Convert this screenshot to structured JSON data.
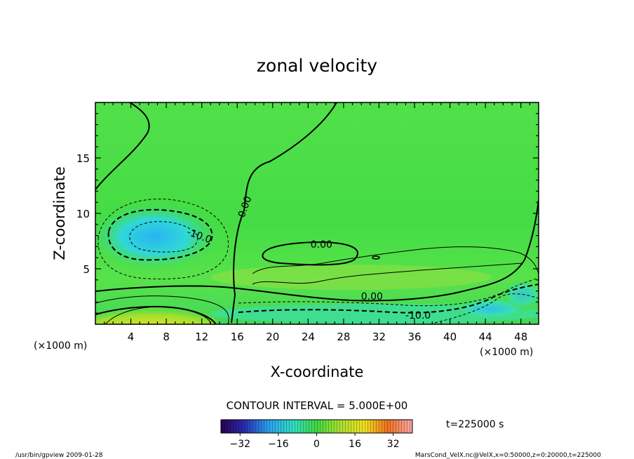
{
  "chart_data": {
    "type": "heatmap",
    "title": "zonal velocity",
    "xlabel": "X-coordinate",
    "ylabel": "Z-coordinate",
    "x_unit": "(×1000 m)",
    "y_unit": "(×1000 m)",
    "xlim": [
      0,
      50
    ],
    "ylim": [
      0,
      20
    ],
    "x_ticks": [
      4,
      8,
      12,
      16,
      20,
      24,
      28,
      32,
      36,
      40,
      44,
      48
    ],
    "y_ticks": [
      5,
      10,
      15
    ],
    "contour_labels": [
      {
        "text": "0.00",
        "x": 17.2,
        "z": 10.5
      },
      {
        "text": "-10.0",
        "x": 11.6,
        "z": 7.7
      },
      {
        "text": "0.00",
        "x": 25.5,
        "z": 6.9
      },
      {
        "text": "0.00",
        "x": 31.2,
        "z": 2.2
      },
      {
        "text": "-10.0",
        "x": 36.4,
        "z": 0.5
      }
    ],
    "contour_interval_text": "CONTOUR INTERVAL = 5.000E+00",
    "colorbar": {
      "range": [
        -40,
        40
      ],
      "ticks": [
        -32,
        -16,
        0,
        16,
        32
      ]
    },
    "time_text": "t=225000 s"
  },
  "footer": {
    "left": "/usr/bin/gpview  2009-01-28",
    "right": "MarsCond_VelX.nc@VelX,x=0:50000,z=0:20000,t=225000"
  }
}
